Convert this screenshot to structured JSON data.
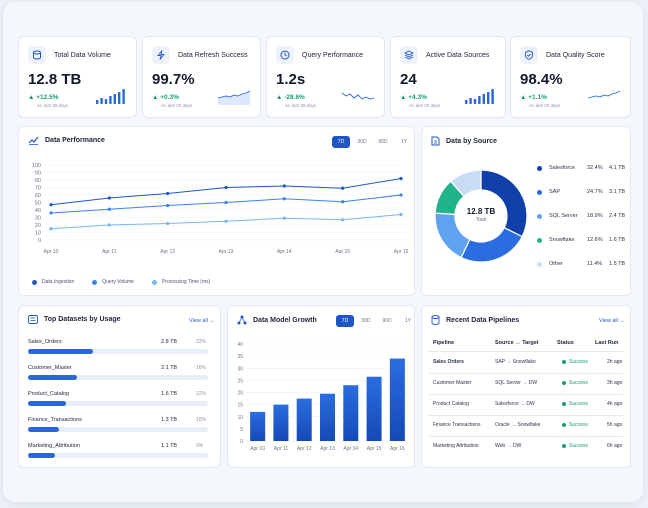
{
  "kpis": [
    {
      "title": "Total Data Volume",
      "value": "12.8 TB",
      "trend": "▲ +12.5%",
      "sub": "vs. last 30 days",
      "icon": "database-icon",
      "trend_dir": "up"
    },
    {
      "title": "Data Refresh Success",
      "value": "99.7%",
      "trend": "▲ +0.3%",
      "sub": "vs. last 30 days",
      "icon": "lightning-icon",
      "trend_dir": "up"
    },
    {
      "title": "Query Performance",
      "value": "1.2s",
      "trend": "▲ -28.6%",
      "sub": "vs. last 30 days",
      "icon": "clock-icon",
      "trend_dir": "up"
    },
    {
      "title": "Active Data Sources",
      "value": "24",
      "trend": "▲ +4.3%",
      "sub": "vs. last 30 days",
      "icon": "layers-icon",
      "trend_dir": "up"
    },
    {
      "title": "Data Quality Score",
      "value": "98.4%",
      "trend": "▲ +1.1%",
      "sub": "vs. last 30 days",
      "icon": "shield-check-icon",
      "trend_dir": "up"
    }
  ],
  "performance": {
    "title": "Data Performance",
    "tabs": [
      "7D",
      "30D",
      "90D",
      "1Y"
    ],
    "active_tab": "7D",
    "legend": [
      "Data Ingestion",
      "Query Volume",
      "Processing Time (ms)"
    ]
  },
  "source": {
    "title": "Data by Source",
    "center_value": "12.8 TB",
    "center_label": "Total",
    "items": [
      {
        "name": "Salesforce",
        "pct": "32.4%",
        "size": "4.1 TB",
        "value": 32.4,
        "color": "#0f3fa8"
      },
      {
        "name": "SAP",
        "pct": "24.7%",
        "size": "3.1 TB",
        "value": 24.7,
        "color": "#2a6de0"
      },
      {
        "name": "SQL Server",
        "pct": "18.9%",
        "size": "2.4 TB",
        "value": 18.9,
        "color": "#5fa3f0"
      },
      {
        "name": "Snowflake",
        "pct": "12.6%",
        "size": "1.6 TB",
        "value": 12.6,
        "color": "#21b38a"
      },
      {
        "name": "Other",
        "pct": "11.4%",
        "size": "1.5 TB",
        "value": 11.4,
        "color": "#c9dcf6"
      }
    ]
  },
  "datasets": {
    "title": "Top Datasets by Usage",
    "view_all": "View all",
    "rows": [
      {
        "name": "Sales_Orders",
        "size": "2.8 TB",
        "pct": "22%",
        "fill": 0.36
      },
      {
        "name": "Customer_Master",
        "size": "2.1 TB",
        "pct": "16%",
        "fill": 0.27
      },
      {
        "name": "Product_Catalog",
        "size": "1.6 TB",
        "pct": "12%",
        "fill": 0.21
      },
      {
        "name": "Finance_Transactions",
        "size": "1.3 TB",
        "pct": "10%",
        "fill": 0.17
      },
      {
        "name": "Marketing_Attribution",
        "size": "1.1 TB",
        "pct": "9%",
        "fill": 0.15
      }
    ]
  },
  "growth": {
    "title": "Data Model Growth",
    "tabs": [
      "7D",
      "30D",
      "90D",
      "1Y"
    ],
    "active_tab": "7D"
  },
  "pipelines": {
    "title": "Recent Data Pipelines",
    "view_all": "View all",
    "headers": [
      "Pipeline",
      "Source → Target",
      "Status",
      "Last Run"
    ],
    "rows": [
      {
        "name": "Sales Orders",
        "route": "SAP → Snowflake",
        "status": "Success",
        "last": "2h ago"
      },
      {
        "name": "Customer Master",
        "route": "SQL Server → DW",
        "status": "Success",
        "last": "3h ago"
      },
      {
        "name": "Product Catalog",
        "route": "Salesforce → DW",
        "status": "Success",
        "last": "4h ago"
      },
      {
        "name": "Finance Transactions",
        "route": "Oracle → Snowflake",
        "status": "Success",
        "last": "5h ago"
      },
      {
        "name": "Marketing Attribution",
        "route": "Web → DW",
        "status": "Success",
        "last": "6h ago"
      }
    ]
  },
  "chart_data": [
    {
      "type": "line",
      "x": [
        "Apr 10",
        "Apr 11",
        "Apr 12",
        "Apr 13",
        "Apr 14",
        "Apr 15",
        "Apr 16"
      ],
      "ylim": [
        0,
        100
      ],
      "yticks": [
        0,
        10,
        20,
        30,
        40,
        50,
        60,
        70,
        80,
        90,
        100
      ],
      "series": [
        {
          "name": "Data Ingestion",
          "values": [
            47,
            56,
            62,
            70,
            72,
            69,
            82
          ],
          "color": "#1f56c4"
        },
        {
          "name": "Query Volume",
          "values": [
            36,
            41,
            46,
            50,
            55,
            51,
            60
          ],
          "color": "#3b82ec"
        },
        {
          "name": "Processing Time (ms)",
          "values": [
            15,
            20,
            22,
            25,
            29,
            27,
            34
          ],
          "color": "#7ab5f2"
        }
      ]
    },
    {
      "type": "bar",
      "categories": [
        "Apr 10",
        "Apr 11",
        "Apr 12",
        "Apr 13",
        "Apr 14",
        "Apr 15",
        "Apr 16"
      ],
      "values": [
        12,
        15,
        17.5,
        19.5,
        23,
        26.5,
        34
      ],
      "ylim": [
        0,
        40
      ],
      "yticks": [
        0,
        5,
        10,
        15,
        20,
        25,
        30,
        35,
        40
      ]
    }
  ]
}
